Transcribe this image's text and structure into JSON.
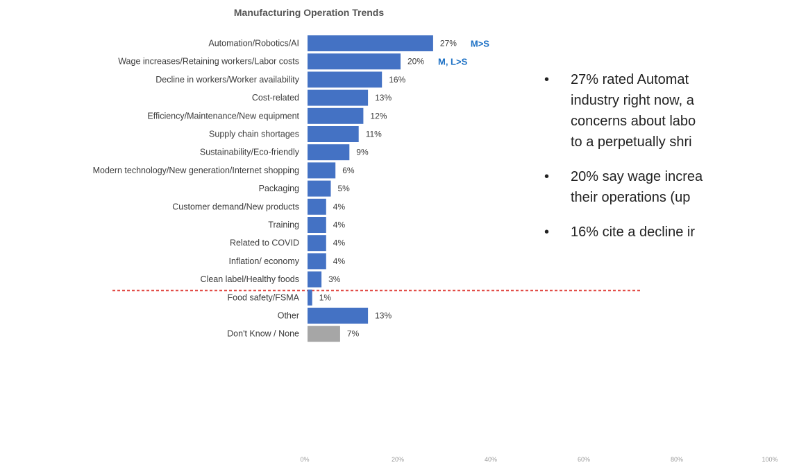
{
  "chart_data": {
    "type": "bar",
    "orientation": "horizontal",
    "title": "Manufacturing Operation Trends",
    "categories": [
      "Automation/Robotics/AI",
      "Wage increases/Retaining workers/Labor costs",
      "Decline in workers/Worker availability",
      "Cost-related",
      "Efficiency/Maintenance/New equipment",
      "Supply chain shortages",
      "Sustainability/Eco-friendly",
      "Modern technology/New generation/Internet shopping",
      "Packaging",
      "Customer demand/New products",
      "Training",
      "Related to COVID",
      "Inflation/ economy",
      "Clean label/Healthy foods",
      "Food safety/FSMA",
      "Other",
      "Don't Know /  None"
    ],
    "values": [
      27,
      20,
      16,
      13,
      12,
      11,
      9,
      6,
      5,
      4,
      4,
      4,
      4,
      3,
      1,
      13,
      7
    ],
    "value_labels": [
      "27%",
      "20%",
      "16%",
      "13%",
      "12%",
      "11%",
      "9%",
      "6%",
      "5%",
      "4%",
      "4%",
      "4%",
      "4%",
      "3%",
      "1%",
      "13%",
      "7%"
    ],
    "annotations": [
      {
        "category": "Automation/Robotics/AI",
        "text": "M>S"
      },
      {
        "category": "Wage increases/Retaining workers/Labor costs",
        "text": "M, L>S"
      }
    ],
    "xlim": [
      0,
      100
    ],
    "x_ticks": [
      "0%",
      "20%",
      "40%",
      "60%",
      "80%",
      "100%"
    ],
    "grid": false,
    "legend": "none",
    "divider_after": "Clean label/Healthy foods",
    "colors": {
      "bar": "#4472c4",
      "bar_muted": "#a6a6a6",
      "divider": "#e0403a",
      "annotation": "#1a6fc4"
    },
    "muted_categories": [
      "Don't Know /  None"
    ]
  },
  "bullets": [
    "27% rated Automat",
    "industry right now, a",
    "concerns about labo",
    "to a perpetually shri",
    "20% say wage increa",
    "their operations (up",
    "16% cite a decline ir"
  ],
  "bullet_groups": [
    [
      0,
      1,
      2,
      3
    ],
    [
      4,
      5
    ],
    [
      6
    ]
  ],
  "bullet_glyph": "•"
}
